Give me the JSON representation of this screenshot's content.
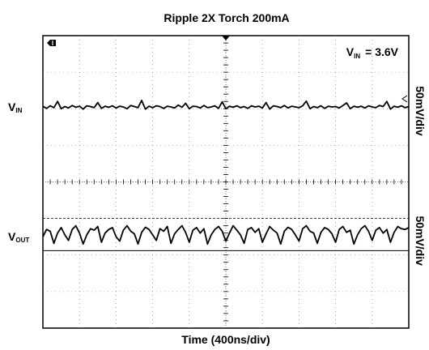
{
  "chart_data": {
    "type": "line",
    "title": "Ripple 2X Torch 200mA",
    "xlabel": "Time (400ns/div)",
    "vin_annotation": {
      "symbol": "V",
      "subscript": "IN",
      "text": "= 3.6V"
    },
    "x_divisions": 10,
    "y_divisions": 8,
    "grid": true,
    "series": [
      {
        "name_symbol": "V",
        "name_subscript": "IN",
        "scale_label": "50mV/div",
        "baseline_div": 1.95,
        "color": "#000000",
        "values": [
          0.02,
          -0.04,
          0.03,
          -0.02,
          0.15,
          -0.05,
          0.01,
          -0.03,
          0.04,
          -0.01,
          0.02,
          -0.06,
          0.03,
          0.01,
          -0.02,
          0.12,
          -0.04,
          0.02,
          -0.01,
          0.03,
          -0.03,
          0.02,
          0.0,
          -0.05,
          0.04,
          0.01,
          -0.02,
          0.18,
          -0.06,
          0.02,
          -0.02,
          0.03,
          0.01,
          -0.04,
          0.02,
          0.0,
          -0.03,
          0.05,
          -0.01,
          0.1,
          -0.05,
          0.02,
          0.01,
          -0.03,
          0.04,
          -0.02,
          0.0,
          0.03,
          -0.04,
          0.14,
          -0.05,
          0.02,
          -0.01,
          0.03,
          -0.02,
          0.01,
          -0.04,
          0.03,
          0.0,
          0.02,
          -0.03,
          0.12,
          -0.06,
          0.03,
          0.01,
          -0.02,
          0.04,
          -0.03,
          0.02,
          0.0,
          -0.02,
          0.03,
          0.16,
          -0.05,
          0.01,
          -0.02,
          0.03,
          -0.04,
          0.02,
          0.0,
          0.01,
          -0.03,
          0.04,
          0.11,
          -0.05,
          0.02,
          -0.01,
          0.02,
          -0.03,
          0.03,
          0.0,
          -0.02,
          0.04,
          0.01,
          0.15,
          -0.06,
          0.02,
          -0.01,
          0.03,
          -0.02,
          0.01
        ]
      },
      {
        "name_symbol": "V",
        "name_subscript": "OUT",
        "scale_label": "50mV/div",
        "baseline_div": 5.5,
        "color": "#000000",
        "values": [
          0.0,
          0.2,
          0.15,
          -0.18,
          0.1,
          0.25,
          0.05,
          -0.1,
          0.2,
          0.3,
          0.1,
          -0.2,
          0.05,
          0.22,
          0.18,
          0.28,
          -0.15,
          0.1,
          0.2,
          0.25,
          0.0,
          -0.12,
          0.18,
          0.3,
          0.15,
          0.08,
          -0.2,
          0.12,
          0.26,
          0.2,
          0.05,
          -0.1,
          0.22,
          0.15,
          0.28,
          -0.18,
          0.08,
          0.2,
          0.3,
          0.12,
          -0.15,
          0.18,
          0.25,
          0.1,
          0.22,
          -0.2,
          0.05,
          0.2,
          0.28,
          0.15,
          -0.12,
          0.1,
          0.3,
          0.18,
          0.05,
          -0.18,
          0.2,
          0.25,
          0.12,
          0.22,
          -0.15,
          0.08,
          0.28,
          0.18,
          0.1,
          -0.2,
          0.15,
          0.26,
          0.2,
          0.05,
          -0.12,
          0.22,
          0.3,
          0.15,
          0.1,
          -0.18,
          0.12,
          0.25,
          0.2,
          0.08,
          -0.15,
          0.2,
          0.28,
          0.12,
          0.18,
          -0.2,
          0.05,
          0.22,
          0.3,
          0.15,
          -0.1,
          0.18,
          0.25,
          0.1,
          0.2,
          -0.15,
          0.12,
          0.28,
          0.22,
          0.2,
          0.25
        ]
      }
    ]
  },
  "markers": {
    "trigger_icon": "trigger-position-arrow",
    "channel_icon": "channel-1-marker",
    "level_icon": "trigger-level-arrow"
  }
}
